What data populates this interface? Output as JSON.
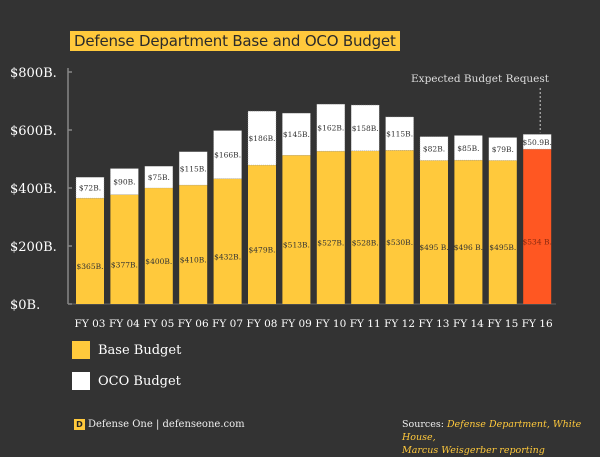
{
  "colors": {
    "background": "#333333",
    "base": "#FFC93C",
    "oco": "#FFFFFF",
    "highlight": "#FF5722",
    "title_bg": "#FFC93C"
  },
  "chart_data": {
    "type": "bar",
    "stacked": true,
    "title": "Defense Department Base and OCO Budget",
    "categories": [
      "FY 03",
      "FY 04",
      "FY 05",
      "FY 06",
      "FY 07",
      "FY 08",
      "FY 09",
      "FY 10",
      "FY 11",
      "FY 12",
      "FY 13",
      "FY 14",
      "FY 15",
      "FY 16"
    ],
    "series": [
      {
        "name": "Base Budget",
        "values": [
          365,
          377,
          400,
          410,
          432,
          479,
          513,
          527,
          528,
          530,
          495,
          496,
          495,
          534
        ],
        "labels": [
          "$365B.",
          "$377B.",
          "$400B.",
          "$410B.",
          "$432B.",
          "$479B.",
          "$513B.",
          "$527B.",
          "$528B.",
          "$530B.",
          "$495 B.",
          "$496 B.",
          "$495B.",
          "$534 B."
        ]
      },
      {
        "name": "OCO Budget",
        "values": [
          72,
          90,
          75,
          115,
          166,
          186,
          145,
          162,
          158,
          115,
          82,
          85,
          79,
          50.9
        ],
        "labels": [
          "$72B.",
          "$90B.",
          "$75B.",
          "$115B.",
          "$166B.",
          "$186B.",
          "$145B.",
          "$162B.",
          "$158B.",
          "$115B.",
          "$82B.",
          "$85B.",
          "$79B.",
          "$50.9B."
        ]
      }
    ],
    "highlight_category": "FY 16",
    "annotation": "Expected Budget Request",
    "ylim": [
      0,
      800
    ],
    "yticks": [
      0,
      200,
      400,
      600,
      800
    ],
    "ytick_labels": [
      "$0B.",
      "$200B.",
      "$400B.",
      "$600B.",
      "$800B."
    ],
    "legend_placement": "bottom-left",
    "grid": false
  },
  "footer": {
    "logo_letter": "D",
    "brand": "Defense One | defenseone.com",
    "sources_label": "Sources:",
    "sources_line1": "Defense Department, White House,",
    "sources_line2": "Marcus Weisgerber reporting"
  }
}
